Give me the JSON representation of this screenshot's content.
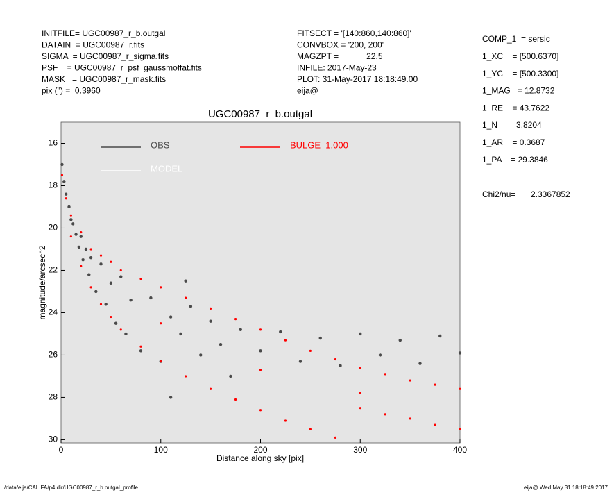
{
  "header": {
    "left": [
      "INITFILE= UGC00987_r_b.outgal",
      "DATAIN  = UGC00987_r.fits",
      "SIGMA  = UGC00987_r_sigma.fits",
      "PSF    = UGC00987_r_psf_gaussmoffat.fits",
      "MASK   = UGC00987_r_mask.fits",
      "pix (\") =  0.3960"
    ],
    "middle": [
      "FITSECT = '[140:860,140:860]'",
      "CONVBOX = '200, 200'",
      "MAGZPT =            22.5",
      "INFILE: 2017-May-23",
      "PLOT: 31-May-2017 18:18:49.00",
      "eija@"
    ]
  },
  "components": [
    "COMP_1  = sersic",
    "1_XC    = [500.6370]",
    "1_YC    = [500.3300]",
    "1_MAG   = 12.8732",
    "1_RE    = 43.7622",
    "1_N     = 3.8204",
    "1_AR    = 0.3687",
    "1_PA    = 29.3846"
  ],
  "chi2": {
    "label": "Chi2/nu=",
    "value": "2.3367852"
  },
  "footer": {
    "left": "/data/eija/CALIFA/p4.dir/UGC00987_r_b.outgal_profile",
    "right": "eija@  Wed May 31 18:18:49 2017"
  },
  "chart_data": {
    "type": "scatter",
    "title": "UGC00987_r_b.outgal",
    "x_label": "Distance along sky [pix]",
    "y_label": "magnitude/arcsec^2",
    "xlim": [
      0,
      400
    ],
    "xticks": [
      0,
      100,
      200,
      300,
      400
    ],
    "ylim": [
      30.15,
      15
    ],
    "yticks": [
      16,
      18,
      20,
      22,
      24,
      26,
      28,
      30
    ],
    "background": "#e5e5e5",
    "model_legend": {
      "name": "MODEL",
      "color": "#ffffff"
    },
    "series": [
      {
        "name": "OBS",
        "color": "#4a4a4a",
        "x": [
          1,
          3,
          5,
          8,
          10,
          12,
          15,
          18,
          20,
          22,
          25,
          28,
          30,
          35,
          40,
          45,
          50,
          55,
          60,
          65,
          70,
          80,
          90,
          100,
          110,
          120,
          130,
          140,
          150,
          160,
          170,
          180,
          200,
          220,
          240,
          260,
          280,
          300,
          320,
          340,
          360,
          380,
          400,
          110,
          125
        ],
        "values": [
          17.0,
          17.8,
          18.4,
          19.0,
          19.6,
          19.8,
          20.3,
          20.9,
          20.4,
          21.5,
          21.0,
          22.2,
          21.4,
          23.0,
          21.7,
          23.6,
          22.6,
          24.5,
          22.3,
          25.0,
          23.4,
          25.8,
          23.3,
          26.3,
          24.2,
          25.0,
          23.7,
          26.0,
          24.4,
          25.5,
          27.0,
          24.8,
          25.8,
          24.9,
          26.3,
          25.2,
          26.5,
          25.0,
          26.0,
          25.3,
          26.4,
          25.1,
          25.9,
          28.0,
          22.5
        ]
      },
      {
        "name": "BULGE  1.000",
        "color": "#ff0000",
        "x": [
          1,
          5,
          10,
          10,
          20,
          20,
          30,
          30,
          40,
          40,
          50,
          50,
          60,
          60,
          80,
          80,
          100,
          100,
          125,
          125,
          150,
          150,
          175,
          175,
          200,
          200,
          225,
          225,
          250,
          250,
          275,
          275,
          300,
          300,
          325,
          325,
          350,
          350,
          375,
          375,
          400,
          400,
          100,
          200,
          300
        ],
        "values": [
          17.5,
          18.6,
          19.4,
          20.4,
          20.2,
          21.8,
          21.0,
          22.8,
          21.3,
          23.6,
          21.6,
          24.2,
          22.0,
          24.8,
          22.4,
          25.6,
          22.8,
          26.3,
          23.3,
          27.0,
          23.8,
          27.6,
          24.3,
          28.1,
          24.8,
          28.6,
          25.3,
          29.1,
          25.8,
          29.5,
          26.2,
          29.9,
          26.6,
          28.5,
          26.9,
          28.8,
          27.2,
          29.0,
          27.4,
          29.3,
          27.6,
          29.5,
          24.5,
          26.7,
          27.8
        ]
      }
    ]
  }
}
